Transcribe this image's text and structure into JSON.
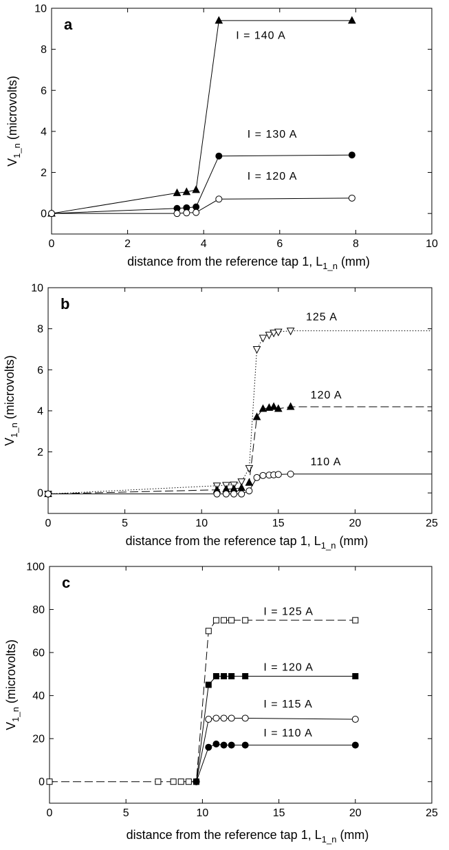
{
  "chart_data": [
    {
      "type": "line",
      "panel_label": "a",
      "xlabel": "distance from the reference tap 1, L",
      "xlabel_sub": "1_n",
      "xlabel_unit": " (mm)",
      "ylabel": "V",
      "ylabel_sub": "1_n",
      "ylabel_unit": " (microvolts)",
      "xlim": [
        0,
        10
      ],
      "ylim": [
        -1,
        10
      ],
      "xticks": [
        0,
        2,
        4,
        6,
        8,
        10
      ],
      "yticks": [
        0,
        2,
        4,
        6,
        8,
        10
      ],
      "series": [
        {
          "name": "I = 140 A",
          "marker": "triangle-up",
          "fill": "black",
          "line": "solid",
          "x": [
            0,
            3.3,
            3.55,
            3.8,
            4.4,
            7.9
          ],
          "y": [
            0,
            1.0,
            1.05,
            1.15,
            9.4,
            9.4
          ],
          "label_at": [
            4.85,
            8.5
          ]
        },
        {
          "name": "I = 130 A",
          "marker": "circle",
          "fill": "black",
          "line": "solid",
          "x": [
            0,
            3.3,
            3.55,
            3.8,
            4.4,
            7.9
          ],
          "y": [
            0,
            0.25,
            0.28,
            0.32,
            2.8,
            2.85
          ],
          "label_at": [
            5.15,
            3.7
          ]
        },
        {
          "name": "I = 120 A",
          "marker": "circle",
          "fill": "white",
          "line": "solid",
          "x": [
            0,
            3.3,
            3.55,
            3.8,
            4.4,
            7.9
          ],
          "y": [
            0,
            0,
            0.03,
            0.05,
            0.7,
            0.75
          ],
          "label_at": [
            5.15,
            1.65
          ]
        }
      ]
    },
    {
      "type": "line",
      "panel_label": "b",
      "xlabel": "distance from the reference tap 1, L",
      "xlabel_sub": "1_n",
      "xlabel_unit": " (mm)",
      "ylabel": "V",
      "ylabel_sub": "1_n",
      "ylabel_unit": " (microvolts)",
      "xlim": [
        0,
        25
      ],
      "ylim": [
        -1,
        10
      ],
      "xticks": [
        0,
        5,
        10,
        15,
        20,
        25
      ],
      "yticks": [
        0,
        2,
        4,
        6,
        8,
        10
      ],
      "series": [
        {
          "name": "125 A",
          "marker": "triangle-down",
          "fill": "white",
          "line": "dotted",
          "x": [
            0,
            11,
            11.6,
            12.1,
            12.6,
            13.1,
            13.6,
            14.0,
            14.4,
            14.7,
            15.0,
            15.8
          ],
          "y": [
            -0.05,
            0.35,
            0.38,
            0.4,
            0.55,
            1.2,
            7.0,
            7.55,
            7.7,
            7.8,
            7.85,
            7.9
          ],
          "extend_to": 25,
          "label_at": [
            16.8,
            8.4
          ]
        },
        {
          "name": "120 A",
          "marker": "triangle-up",
          "fill": "black",
          "line": "dashed",
          "x": [
            0,
            11,
            11.6,
            12.1,
            12.6,
            13.1,
            13.6,
            14.0,
            14.4,
            14.7,
            15.0,
            15.8
          ],
          "y": [
            -0.05,
            0.15,
            0.18,
            0.2,
            0.25,
            0.5,
            3.7,
            4.1,
            4.15,
            4.2,
            4.1,
            4.2
          ],
          "extend_to": 25,
          "label_at": [
            17.1,
            4.6
          ]
        },
        {
          "name": "110 A",
          "marker": "circle",
          "fill": "white",
          "line": "solid",
          "x": [
            0,
            11,
            11.6,
            12.1,
            12.6,
            13.1,
            13.6,
            14.0,
            14.4,
            14.7,
            15.0,
            15.8
          ],
          "y": [
            -0.05,
            -0.05,
            -0.05,
            -0.05,
            -0.05,
            0.1,
            0.75,
            0.85,
            0.87,
            0.88,
            0.9,
            0.92
          ],
          "extend_to": 25,
          "label_at": [
            17.1,
            1.35
          ]
        }
      ]
    },
    {
      "type": "line",
      "panel_label": "c",
      "xlabel": "distance from the reference tap 1, L",
      "xlabel_sub": "1_n",
      "xlabel_unit": " (mm)",
      "ylabel": "V",
      "ylabel_sub": "1_n",
      "ylabel_unit": " (microvolts)",
      "xlim": [
        0,
        25
      ],
      "ylim": [
        -10,
        100
      ],
      "xticks": [
        0,
        5,
        10,
        15,
        20,
        25
      ],
      "yticks": [
        0,
        20,
        40,
        60,
        80,
        100
      ],
      "series": [
        {
          "name": "I = 125 A",
          "marker": "square",
          "fill": "white",
          "line": "dashed",
          "x": [
            0,
            7.1,
            8.1,
            8.6,
            9.1,
            9.6,
            10.4,
            10.9,
            11.4,
            11.9,
            12.8,
            20
          ],
          "y": [
            0,
            0,
            0,
            0,
            0,
            0,
            70,
            75,
            75,
            75,
            75,
            75
          ],
          "label_at": [
            14.0,
            77.5
          ]
        },
        {
          "name": "I = 120 A",
          "marker": "square",
          "fill": "black",
          "line": "solid",
          "x": [
            9.6,
            10.4,
            10.9,
            11.4,
            11.9,
            12.8,
            20
          ],
          "y": [
            0,
            45,
            49,
            49,
            49,
            49,
            49
          ],
          "label_at": [
            14.0,
            51.5
          ]
        },
        {
          "name": "I = 115 A",
          "marker": "circle",
          "fill": "white",
          "line": "solid",
          "x": [
            9.6,
            10.4,
            10.9,
            11.4,
            11.9,
            12.8,
            20
          ],
          "y": [
            0,
            29,
            29.5,
            29.5,
            29.5,
            29.5,
            29
          ],
          "label_at": [
            14.0,
            34.5
          ]
        },
        {
          "name": "I = 110 A",
          "marker": "circle",
          "fill": "black",
          "line": "solid",
          "x": [
            9.6,
            10.4,
            10.9,
            11.4,
            11.9,
            12.8,
            20
          ],
          "y": [
            0,
            16,
            17.5,
            17,
            17,
            17,
            17
          ],
          "label_at": [
            14.0,
            21.0
          ]
        }
      ]
    }
  ]
}
